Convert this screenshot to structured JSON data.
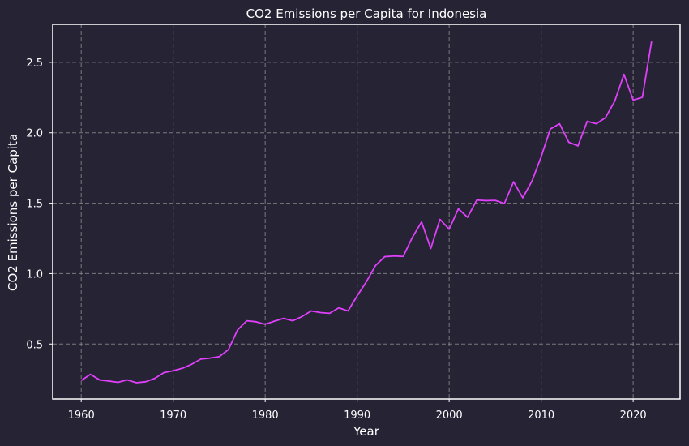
{
  "chart_data": {
    "type": "line",
    "title": "CO2 Emissions per Capita for Indonesia",
    "xlabel": "Year",
    "ylabel": "CO2 Emissions per Capita",
    "xlim": [
      1956.9,
      2025.1
    ],
    "ylim": [
      0.11,
      2.77
    ],
    "xticks": [
      1960,
      1970,
      1980,
      1990,
      2000,
      2010,
      2020
    ],
    "yticks": [
      0.5,
      1.0,
      1.5,
      2.0,
      2.5
    ],
    "xtick_labels": [
      "1960",
      "1970",
      "1980",
      "1990",
      "2000",
      "2010",
      "2020"
    ],
    "ytick_labels": [
      "0.5",
      "1.0",
      "1.5",
      "2.0",
      "2.5"
    ],
    "grid": true,
    "colors": {
      "background": "#262335",
      "line": "#e040fb",
      "grid": "#8a8a8a",
      "text": "#ffffff"
    },
    "series": [
      {
        "x": [
          1960,
          1961,
          1962,
          1963,
          1964,
          1965,
          1966,
          1967,
          1968,
          1969,
          1970,
          1971,
          1972,
          1973,
          1974,
          1975,
          1976,
          1977,
          1978,
          1979,
          1980,
          1981,
          1982,
          1983,
          1984,
          1985,
          1986,
          1987,
          1988,
          1989,
          1990,
          1991,
          1992,
          1993,
          1994,
          1995,
          1996,
          1997,
          1998,
          1999,
          2000,
          2001,
          2002,
          2003,
          2004,
          2005,
          2006,
          2007,
          2008,
          2009,
          2010,
          2011,
          2012,
          2013,
          2014,
          2015,
          2016,
          2017,
          2018,
          2019,
          2020,
          2021,
          2022
        ],
        "y": [
          0.24,
          0.285,
          0.245,
          0.237,
          0.228,
          0.245,
          0.225,
          0.232,
          0.256,
          0.297,
          0.31,
          0.328,
          0.356,
          0.393,
          0.4,
          0.41,
          0.46,
          0.6,
          0.665,
          0.658,
          0.64,
          0.662,
          0.682,
          0.665,
          0.695,
          0.735,
          0.723,
          0.718,
          0.757,
          0.735,
          0.842,
          0.942,
          1.058,
          1.12,
          1.125,
          1.122,
          1.257,
          1.367,
          1.178,
          1.385,
          1.315,
          1.46,
          1.4,
          1.522,
          1.518,
          1.52,
          1.498,
          1.652,
          1.538,
          1.657,
          1.83,
          2.027,
          2.064,
          1.933,
          1.907,
          2.081,
          2.064,
          2.108,
          2.225,
          2.415,
          2.232,
          2.252,
          2.648
        ]
      }
    ]
  }
}
